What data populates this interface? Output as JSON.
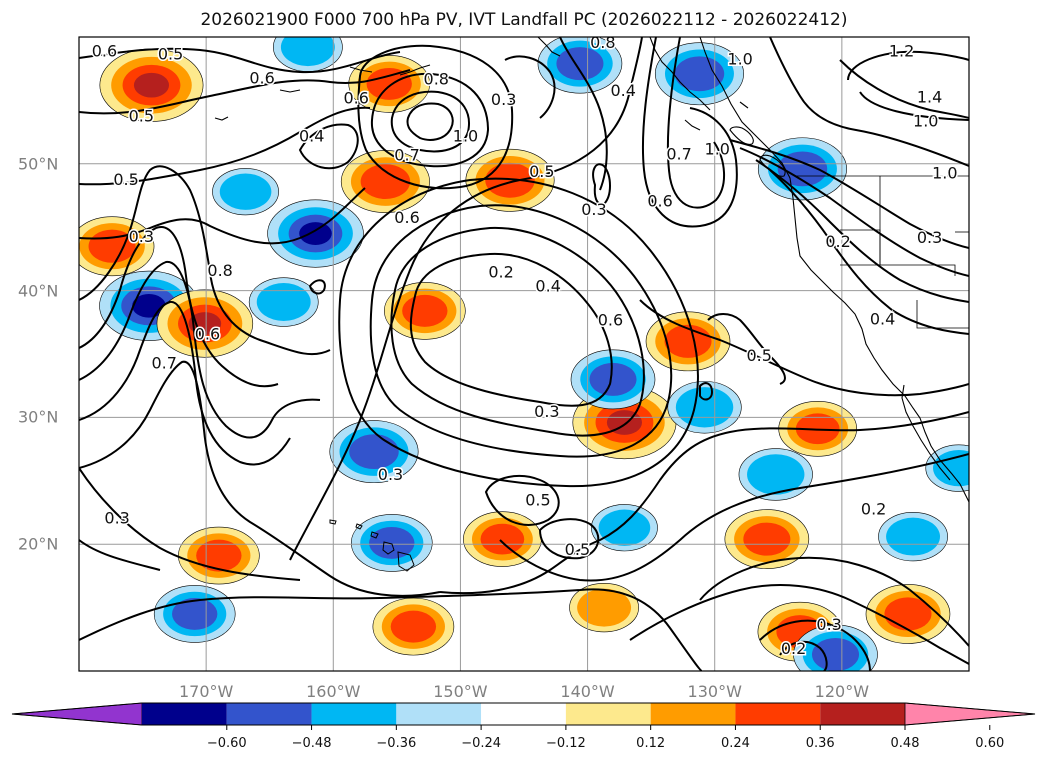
{
  "title": "2026021900 F000 700 hPa PV, IVT Landfall PC (2026022112 - 2026022412)",
  "map": {
    "lon_range": [
      -180,
      -110
    ],
    "lat_range": [
      10,
      60
    ],
    "lon_ticks": [
      {
        "lon": -170,
        "label": "170°W"
      },
      {
        "lon": -160,
        "label": "160°W"
      },
      {
        "lon": -150,
        "label": "150°W"
      },
      {
        "lon": -140,
        "label": "140°W"
      },
      {
        "lon": -130,
        "label": "130°W"
      },
      {
        "lon": -120,
        "label": "120°W"
      }
    ],
    "lat_ticks": [
      {
        "lat": 20,
        "label": "20°N"
      },
      {
        "lat": 30,
        "label": "30°N"
      },
      {
        "lat": 40,
        "label": "40°N"
      },
      {
        "lat": 50,
        "label": "50°N"
      }
    ],
    "grid": true
  },
  "pv_contours": {
    "color": "#000000",
    "labels": [
      {
        "lon": -178.0,
        "lat": 58.8,
        "text": "0.6"
      },
      {
        "lon": -172.8,
        "lat": 58.6,
        "text": "0.5"
      },
      {
        "lon": -175.1,
        "lat": 53.7,
        "text": "0.5"
      },
      {
        "lon": -165.6,
        "lat": 56.7,
        "text": "0.6"
      },
      {
        "lon": -161.7,
        "lat": 52.1,
        "text": "0.4"
      },
      {
        "lon": -176.3,
        "lat": 48.7,
        "text": "0.5"
      },
      {
        "lon": -175.1,
        "lat": 44.2,
        "text": "0.3"
      },
      {
        "lon": -158.2,
        "lat": 55.1,
        "text": "0.6"
      },
      {
        "lon": -151.9,
        "lat": 56.6,
        "text": "0.8"
      },
      {
        "lon": -154.2,
        "lat": 50.6,
        "text": "0.7"
      },
      {
        "lon": -149.6,
        "lat": 52.1,
        "text": "1.0"
      },
      {
        "lon": -146.6,
        "lat": 55.0,
        "text": "0.3"
      },
      {
        "lon": -143.6,
        "lat": 49.3,
        "text": "0.5"
      },
      {
        "lon": -154.2,
        "lat": 45.7,
        "text": "0.6"
      },
      {
        "lon": -137.2,
        "lat": 55.7,
        "text": "0.4"
      },
      {
        "lon": -138.8,
        "lat": 59.5,
        "text": "0.8"
      },
      {
        "lon": -134.3,
        "lat": 47.0,
        "text": "0.6"
      },
      {
        "lon": -132.8,
        "lat": 50.7,
        "text": "0.7"
      },
      {
        "lon": -139.5,
        "lat": 46.3,
        "text": "0.3"
      },
      {
        "lon": -128.0,
        "lat": 58.2,
        "text": "1.0"
      },
      {
        "lon": -115.3,
        "lat": 58.8,
        "text": "1.2"
      },
      {
        "lon": -113.1,
        "lat": 55.2,
        "text": "1.4"
      },
      {
        "lon": -113.4,
        "lat": 53.3,
        "text": "1.0"
      },
      {
        "lon": -111.9,
        "lat": 49.2,
        "text": "1.0"
      },
      {
        "lon": -113.1,
        "lat": 44.1,
        "text": "0.3"
      },
      {
        "lon": -120.3,
        "lat": 43.8,
        "text": "0.2"
      },
      {
        "lon": -129.8,
        "lat": 51.1,
        "text": "1.0"
      },
      {
        "lon": -168.9,
        "lat": 41.5,
        "text": "0.8"
      },
      {
        "lon": -169.9,
        "lat": 36.5,
        "text": "0.6"
      },
      {
        "lon": -173.3,
        "lat": 34.2,
        "text": "0.7"
      },
      {
        "lon": -146.8,
        "lat": 41.4,
        "text": "0.2"
      },
      {
        "lon": -143.1,
        "lat": 40.3,
        "text": "0.4"
      },
      {
        "lon": -138.2,
        "lat": 37.6,
        "text": "0.6"
      },
      {
        "lon": -126.5,
        "lat": 34.8,
        "text": "0.5"
      },
      {
        "lon": -116.8,
        "lat": 37.7,
        "text": "0.4"
      },
      {
        "lon": -143.2,
        "lat": 30.4,
        "text": "0.3"
      },
      {
        "lon": -155.5,
        "lat": 25.4,
        "text": "0.3"
      },
      {
        "lon": -143.9,
        "lat": 23.4,
        "text": "0.5"
      },
      {
        "lon": -140.8,
        "lat": 19.5,
        "text": "0.5"
      },
      {
        "lon": -177.0,
        "lat": 22.0,
        "text": "0.3"
      },
      {
        "lon": -117.5,
        "lat": 22.7,
        "text": "0.2"
      },
      {
        "lon": -121.0,
        "lat": 13.6,
        "text": "0.3"
      },
      {
        "lon": -123.8,
        "lat": 11.7,
        "text": "0.2"
      }
    ]
  },
  "ivt_pc_shading": {
    "positive_colors": [
      "#fde98d",
      "#ff9c00",
      "#ff3c00",
      "#b5201e"
    ],
    "negative_colors": [
      "#b0e0f8",
      "#00b7f3",
      "#3354cc",
      "#00008c"
    ],
    "blobs": [
      {
        "lon": -174.3,
        "lat": 56.2,
        "value": 0.55
      },
      {
        "lon": -177.4,
        "lat": 43.5,
        "value": 0.42
      },
      {
        "lon": -174.5,
        "lat": 38.8,
        "value": -0.52
      },
      {
        "lon": -170.1,
        "lat": 37.4,
        "value": 0.5
      },
      {
        "lon": -161.4,
        "lat": 44.5,
        "value": -0.5
      },
      {
        "lon": -155.9,
        "lat": 48.6,
        "value": 0.45
      },
      {
        "lon": -155.6,
        "lat": 56.3,
        "value": 0.4
      },
      {
        "lon": -146.1,
        "lat": 48.7,
        "value": 0.45
      },
      {
        "lon": -152.8,
        "lat": 38.4,
        "value": 0.4
      },
      {
        "lon": -156.8,
        "lat": 27.3,
        "value": -0.45
      },
      {
        "lon": -140.6,
        "lat": 57.9,
        "value": -0.42
      },
      {
        "lon": -131.2,
        "lat": 57.1,
        "value": -0.45
      },
      {
        "lon": -137.1,
        "lat": 29.6,
        "value": 0.55
      },
      {
        "lon": -132.1,
        "lat": 36.0,
        "value": 0.42
      },
      {
        "lon": -138.0,
        "lat": 33.0,
        "value": -0.42
      },
      {
        "lon": -123.1,
        "lat": 49.6,
        "value": -0.45
      },
      {
        "lon": -125.9,
        "lat": 20.4,
        "value": 0.42
      },
      {
        "lon": -123.3,
        "lat": 13.1,
        "value": 0.42
      },
      {
        "lon": -120.5,
        "lat": 11.3,
        "value": -0.42
      },
      {
        "lon": -114.8,
        "lat": 14.5,
        "value": 0.42
      },
      {
        "lon": -153.7,
        "lat": 13.5,
        "value": 0.4
      },
      {
        "lon": -169.0,
        "lat": 19.1,
        "value": 0.4
      },
      {
        "lon": -170.9,
        "lat": 14.5,
        "value": -0.4
      },
      {
        "lon": -146.7,
        "lat": 20.4,
        "value": 0.38
      },
      {
        "lon": -155.4,
        "lat": 20.1,
        "value": -0.4
      },
      {
        "lon": -138.7,
        "lat": 15.0,
        "value": 0.32
      },
      {
        "lon": -130.8,
        "lat": 30.8,
        "value": -0.35
      },
      {
        "lon": -125.2,
        "lat": 25.5,
        "value": -0.35
      },
      {
        "lon": -121.9,
        "lat": 29.1,
        "value": 0.38
      },
      {
        "lon": -114.4,
        "lat": 20.6,
        "value": -0.32
      },
      {
        "lon": -166.9,
        "lat": 47.8,
        "value": -0.3
      },
      {
        "lon": -163.9,
        "lat": 39.1,
        "value": -0.32
      },
      {
        "lon": -162.0,
        "lat": 59.2,
        "value": -0.32
      },
      {
        "lon": -137.1,
        "lat": 21.3,
        "value": -0.3
      },
      {
        "lon": -110.8,
        "lat": 26.0,
        "value": -0.3
      }
    ]
  },
  "colorbar": {
    "ticks": [
      "−0.60",
      "−0.48",
      "−0.36",
      "−0.24",
      "−0.12",
      "0.12",
      "0.24",
      "0.36",
      "0.48",
      "0.60"
    ],
    "colors": [
      "#9234cf",
      "#00008c",
      "#3354cc",
      "#00b7f3",
      "#b0e0f8",
      "#ffffff",
      "#fde98d",
      "#ff9c00",
      "#ff3c00",
      "#b5201e",
      "#ff84aa"
    ]
  }
}
